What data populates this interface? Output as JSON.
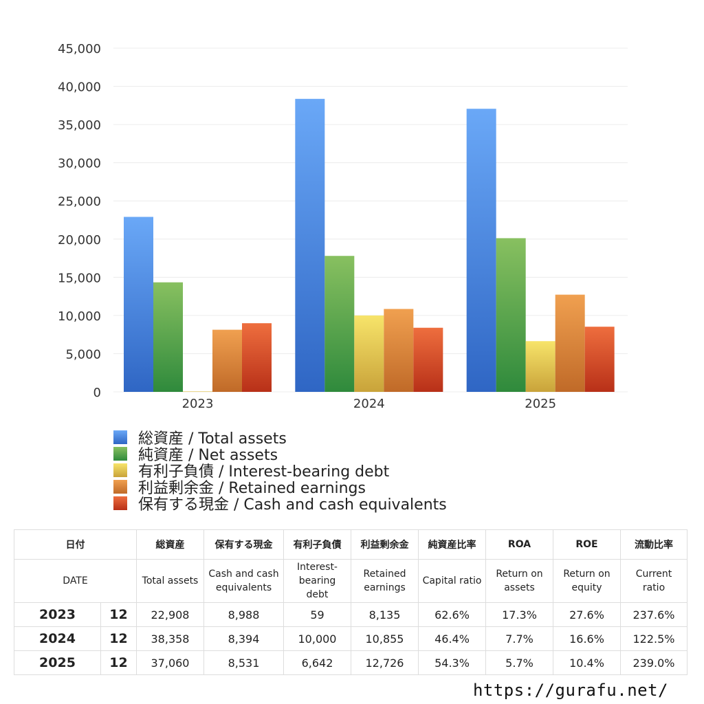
{
  "colors": {
    "total_assets": [
      "#6aa8f7",
      "#2f66c4"
    ],
    "net_assets": [
      "#88c060",
      "#2f8a3c"
    ],
    "interest_bearing_debt": [
      "#f7e46a",
      "#c9a33a"
    ],
    "retained_earnings": [
      "#f0a050",
      "#c06a28"
    ],
    "cash": [
      "#ee6e3e",
      "#b83018"
    ]
  },
  "chart_data": {
    "type": "bar",
    "categories": [
      "2023",
      "2024",
      "2025"
    ],
    "series": [
      {
        "key": "total_assets",
        "name": "総資産 / Total assets",
        "values": [
          22908,
          38358,
          37060
        ]
      },
      {
        "key": "net_assets",
        "name": "純資産 / Net assets",
        "values": [
          14340,
          17800,
          20120
        ]
      },
      {
        "key": "interest_bearing_debt",
        "name": "有利子負債 / Interest-bearing debt",
        "values": [
          59,
          10000,
          6642
        ]
      },
      {
        "key": "retained_earnings",
        "name": "利益剰余金 / Retained earnings",
        "values": [
          8135,
          10855,
          12726
        ]
      },
      {
        "key": "cash",
        "name": "保有する現金 /  Cash and cash equivalents",
        "values": [
          8988,
          8394,
          8531
        ]
      }
    ],
    "y_ticks": [
      "0",
      "5,000",
      "10,000",
      "15,000",
      "20,000",
      "25,000",
      "30,000",
      "35,000",
      "40,000",
      "45,000"
    ],
    "ylim": [
      0,
      45000
    ],
    "grid": true,
    "legend_placement": "bottom"
  },
  "table": {
    "headers_ja": [
      "日付",
      "",
      "総資産",
      "保有する現金",
      "有利子負債",
      "利益剰余金",
      "純資産比率",
      "ROA",
      "ROE",
      "流動比率"
    ],
    "headers_en": [
      "DATE",
      "",
      "Total assets",
      "Cash and cash\nequivalents",
      "Interest-\nbearing\ndebt",
      "Retained\nearnings",
      "Capital ratio",
      "Return on\nassets",
      "Return on\nequity",
      "Current\nratio"
    ],
    "rows": [
      [
        "2023",
        "12",
        "22,908",
        "8,988",
        "59",
        "8,135",
        "62.6%",
        "17.3%",
        "27.6%",
        "237.6%"
      ],
      [
        "2024",
        "12",
        "38,358",
        "8,394",
        "10,000",
        "10,855",
        "46.4%",
        "7.7%",
        "16.6%",
        "122.5%"
      ],
      [
        "2025",
        "12",
        "37,060",
        "8,531",
        "6,642",
        "12,726",
        "54.3%",
        "5.7%",
        "10.4%",
        "239.0%"
      ]
    ]
  },
  "footer": {
    "url": "https://gurafu.net/"
  }
}
